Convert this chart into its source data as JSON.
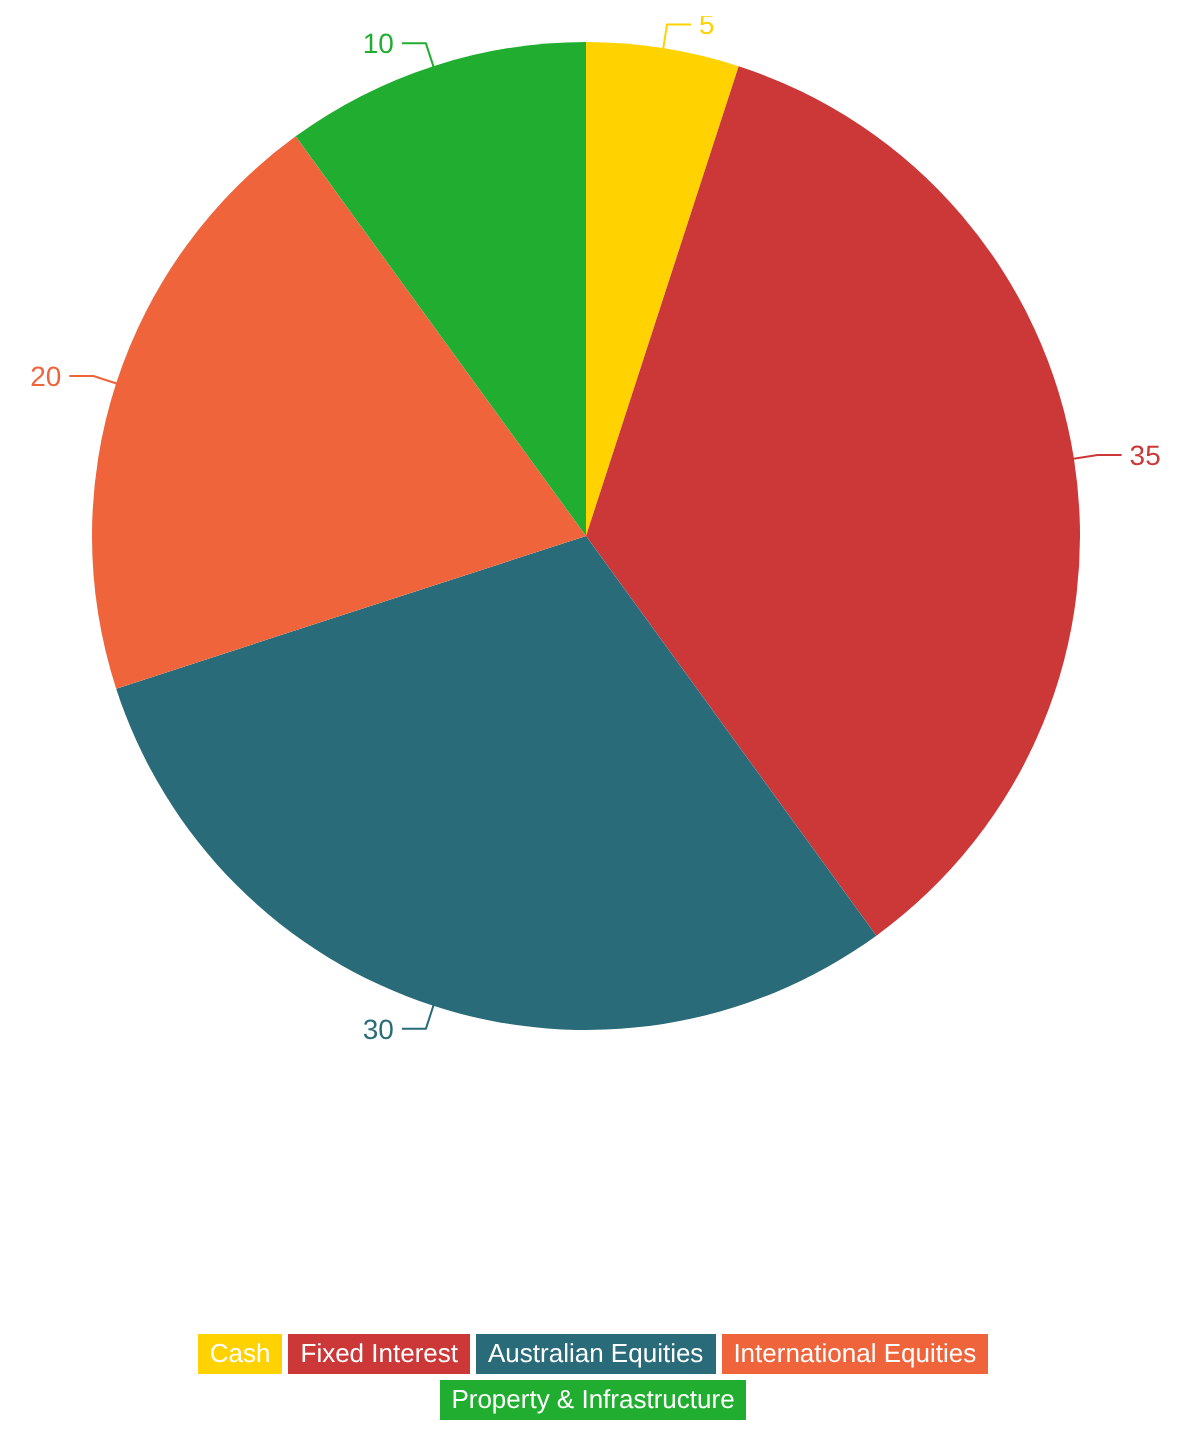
{
  "chart_data": {
    "type": "pie",
    "categories": [
      "Cash",
      "Fixed Interest",
      "Australian Equities",
      "International Equities",
      "Property & Infrastructure"
    ],
    "values": [
      5,
      35,
      30,
      20,
      10
    ],
    "colors": [
      "#ffd200",
      "#cc3737",
      "#296b78",
      "#ef643a",
      "#21ae30"
    ],
    "data_labels": true,
    "legend": "bottom"
  }
}
